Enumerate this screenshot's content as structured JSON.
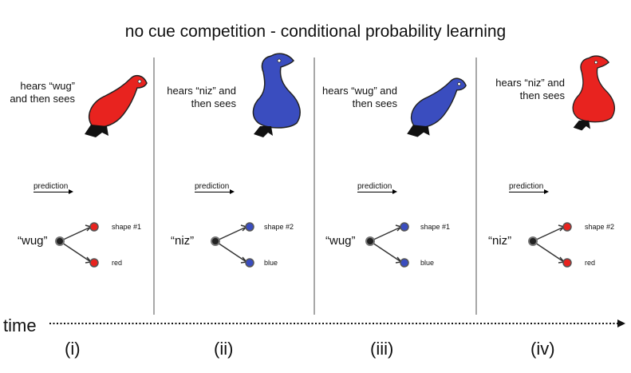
{
  "title": "no cue competition - conditional probability learning",
  "time_label": "time",
  "colors": {
    "red": "#e8231f",
    "blue": "#3a4dbf"
  },
  "panels": [
    {
      "id": "i",
      "hears": "hears “wug” and then sees",
      "word": "“wug”",
      "prediction": "prediction",
      "label_top": "shape #1",
      "label_bottom": "red",
      "numeral": "(i)",
      "bird": "red-bird-shape1",
      "node_color": "red"
    },
    {
      "id": "ii",
      "hears": "hears “niz” and then sees",
      "word": "“niz”",
      "prediction": "prediction",
      "label_top": "shape #2",
      "label_bottom": "blue",
      "numeral": "(ii)",
      "bird": "blue-bird-shape2",
      "node_color": "blue"
    },
    {
      "id": "iii",
      "hears": "hears “wug” and then sees",
      "word": "“wug”",
      "prediction": "prediction",
      "label_top": "shape #1",
      "label_bottom": "blue",
      "numeral": "(iii)",
      "bird": "blue-bird-shape1",
      "node_color": "blue"
    },
    {
      "id": "iv",
      "hears": "hears “niz” and then sees",
      "word": "“niz”",
      "prediction": "prediction",
      "label_top": "shape #2",
      "label_bottom": "red",
      "numeral": "(iv)",
      "bird": "red-bird-shape2",
      "node_color": "red"
    }
  ]
}
